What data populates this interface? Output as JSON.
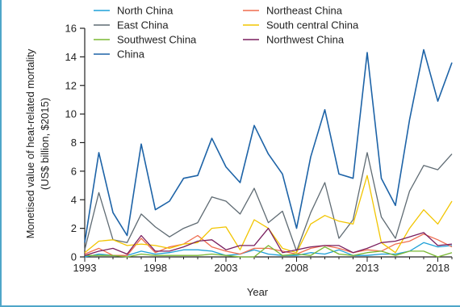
{
  "chart_data": {
    "type": "line",
    "title": "",
    "xlabel": "Year",
    "ylabel_line1": "Monetised value of heat-related mortality",
    "ylabel_line2": "(US$ billion, $2015)",
    "xlim": [
      1993,
      2019
    ],
    "ylim": [
      0,
      16
    ],
    "x_ticks": [
      1993,
      1998,
      2003,
      2008,
      2013,
      2018
    ],
    "y_ticks": [
      0,
      2,
      4,
      6,
      8,
      10,
      12,
      14,
      16
    ],
    "grid": false,
    "legend_position": "top-left",
    "x": [
      1993,
      1994,
      1995,
      1996,
      1997,
      1998,
      1999,
      2000,
      2001,
      2002,
      2003,
      2004,
      2005,
      2006,
      2007,
      2008,
      2009,
      2010,
      2011,
      2012,
      2013,
      2014,
      2015,
      2016,
      2017,
      2018,
      2019
    ],
    "series": [
      {
        "name": "North China",
        "color": "#1fa0d8",
        "values": [
          0.0,
          0.2,
          0.1,
          0.1,
          0.4,
          0.2,
          0.3,
          0.5,
          0.5,
          0.4,
          0.1,
          0.2,
          0.5,
          0.2,
          0.1,
          0.1,
          0.3,
          0.2,
          0.5,
          0.1,
          0.1,
          0.2,
          0.2,
          0.4,
          1.0,
          0.7,
          0.8
        ]
      },
      {
        "name": "Northeast China",
        "color": "#ef6d4f",
        "values": [
          0.2,
          0.6,
          0.1,
          0.1,
          1.3,
          0.3,
          0.7,
          0.9,
          1.5,
          0.7,
          0.4,
          0.2,
          0.6,
          0.6,
          0.4,
          0.2,
          0.6,
          0.8,
          0.6,
          0.3,
          0.5,
          0.4,
          0.9,
          1.1,
          1.6,
          1.2,
          0.7
        ]
      },
      {
        "name": "East China",
        "color": "#5f6b73",
        "values": [
          0.5,
          4.5,
          1.2,
          1.0,
          3.0,
          2.1,
          1.4,
          2.0,
          2.4,
          4.2,
          3.9,
          3.0,
          4.8,
          2.4,
          3.2,
          0.4,
          3.1,
          5.2,
          1.3,
          2.6,
          7.3,
          2.8,
          1.3,
          4.6,
          6.4,
          6.1,
          7.2
        ]
      },
      {
        "name": "South central China",
        "color": "#f2c500",
        "values": [
          0.3,
          1.1,
          1.2,
          0.8,
          0.9,
          0.8,
          0.6,
          0.9,
          1.0,
          2.0,
          2.1,
          0.5,
          2.6,
          2.0,
          0.6,
          0.3,
          2.3,
          2.9,
          2.5,
          2.3,
          5.7,
          1.0,
          0.3,
          2.0,
          3.3,
          2.3,
          3.9
        ]
      },
      {
        "name": "Southwest China",
        "color": "#7ab832",
        "values": [
          0.1,
          0.1,
          0.1,
          0.0,
          0.2,
          0.1,
          0.1,
          0.1,
          0.1,
          0.2,
          0.1,
          0.0,
          0.0,
          0.8,
          0.1,
          0.2,
          0.1,
          0.7,
          0.2,
          0.1,
          0.3,
          0.4,
          0.1,
          0.4,
          0.4,
          0.0,
          0.3
        ]
      },
      {
        "name": "Northwest China",
        "color": "#7a1f5f",
        "values": [
          0.1,
          0.4,
          0.6,
          0.2,
          1.5,
          0.4,
          0.4,
          0.7,
          1.1,
          1.2,
          0.5,
          0.8,
          0.8,
          2.0,
          0.3,
          0.5,
          0.7,
          0.8,
          0.8,
          0.3,
          0.6,
          1.0,
          1.1,
          1.4,
          1.7,
          0.8,
          0.9
        ]
      },
      {
        "name": "China",
        "color": "#1d63a7",
        "values": [
          1.0,
          7.3,
          3.1,
          1.5,
          7.9,
          3.3,
          3.9,
          5.5,
          5.7,
          8.3,
          6.3,
          5.2,
          9.2,
          7.2,
          5.8,
          2.0,
          7.0,
          10.3,
          5.8,
          5.5,
          14.3,
          5.5,
          3.6,
          9.6,
          14.5,
          10.9,
          13.6
        ]
      }
    ]
  }
}
